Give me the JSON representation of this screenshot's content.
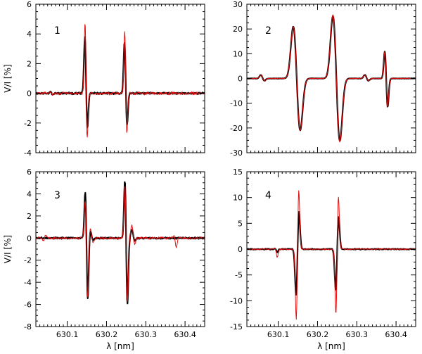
{
  "figure": {
    "ylabel": "V/I [%]",
    "xlabel": "λ [nm]"
  },
  "chart_data": [
    {
      "type": "line",
      "panel_label": "1",
      "xlim": [
        630.02,
        630.45
      ],
      "ylim": [
        -4,
        6
      ],
      "x_ticks": [
        630.1,
        630.2,
        630.3,
        630.4
      ],
      "y_ticks": [
        -4,
        -2,
        0,
        2,
        4,
        6
      ],
      "ylabel": "V/I [%]",
      "xlabel": "",
      "show_x_tick_labels": false,
      "series": [
        {
          "color": "#000000",
          "width": 2.2,
          "noise": 0.07,
          "seed": 11,
          "components": [
            [
              630.148,
              0.0035,
              3.9,
              -2.5
            ],
            [
              630.249,
              0.0035,
              3.6,
              -2.3
            ]
          ],
          "weak": [
            [
              630.06,
              0.003,
              0.15,
              -0.12
            ]
          ]
        },
        {
          "color": "#e01010",
          "width": 1.0,
          "noise": 0.12,
          "seed": 29,
          "components": [
            [
              630.148,
              0.003,
              5.0,
              -3.3
            ],
            [
              630.249,
              0.003,
              4.4,
              -2.9
            ]
          ],
          "weak": [
            [
              630.06,
              0.003,
              0.12,
              -0.12
            ]
          ]
        }
      ]
    },
    {
      "type": "line",
      "panel_label": "2",
      "xlim": [
        630.02,
        630.45
      ],
      "ylim": [
        -30,
        30
      ],
      "x_ticks": [
        630.1,
        630.2,
        630.3,
        630.4
      ],
      "y_ticks": [
        -30,
        -20,
        -10,
        0,
        10,
        20,
        30
      ],
      "ylabel": "",
      "xlabel": "",
      "show_x_tick_labels": false,
      "series": [
        {
          "color": "#000000",
          "width": 2.2,
          "noise": 0.1,
          "seed": 5,
          "components": [
            [
              630.147,
              0.0095,
              22.0,
              -22.0
            ],
            [
              630.248,
              0.0095,
              26.5,
              -26.5
            ],
            [
              630.375,
              0.004,
              11.5,
              -12.0
            ]
          ],
          "weak": [
            [
              630.06,
              0.005,
              1.5,
              -1.0
            ],
            [
              630.325,
              0.005,
              1.5,
              -1.0
            ]
          ]
        },
        {
          "color": "#e01010",
          "width": 1.0,
          "noise": 0.15,
          "seed": 17,
          "components": [
            [
              630.147,
              0.0095,
              22.0,
              -22.0
            ],
            [
              630.248,
              0.0095,
              27.0,
              -27.0
            ],
            [
              630.375,
              0.004,
              11.5,
              -12.0
            ]
          ],
          "weak": [
            [
              630.06,
              0.005,
              1.5,
              -1.0
            ],
            [
              630.325,
              0.005,
              1.5,
              -1.0
            ]
          ]
        }
      ]
    },
    {
      "type": "line",
      "panel_label": "3",
      "xlim": [
        630.02,
        630.45
      ],
      "ylim": [
        -8,
        6
      ],
      "x_ticks": [
        630.1,
        630.2,
        630.3,
        630.4
      ],
      "y_ticks": [
        -8,
        -6,
        -4,
        -2,
        0,
        2,
        4,
        6
      ],
      "ylabel": "V/I [%]",
      "xlabel": "λ [nm]",
      "show_x_tick_labels": true,
      "x_tick_labels": [
        "630.1",
        "630.2",
        "630.3",
        "630.4"
      ],
      "series": [
        {
          "color": "#000000",
          "width": 2.2,
          "noise": 0.08,
          "seed": 3,
          "components": [
            [
              630.149,
              0.0035,
              4.4,
              -5.8
            ],
            [
              630.25,
              0.0035,
              5.4,
              -6.2
            ]
          ],
          "weak": [
            [
              630.268,
              0.004,
              0.8,
              -0.3
            ],
            [
              630.162,
              0.004,
              0.7,
              -0.2
            ]
          ]
        },
        {
          "color": "#e01010",
          "width": 1.0,
          "noise": 0.13,
          "seed": 41,
          "components": [
            [
              630.149,
              0.0035,
              3.7,
              -5.7
            ],
            [
              630.25,
              0.0035,
              5.1,
              -6.0
            ]
          ],
          "weak": [
            [
              630.268,
              0.004,
              1.2,
              -0.6
            ],
            [
              630.162,
              0.004,
              1.0,
              -0.4
            ],
            [
              630.375,
              0.003,
              0.2,
              -0.9
            ],
            [
              630.042,
              0.003,
              -0.3,
              0.3
            ]
          ]
        }
      ]
    },
    {
      "type": "line",
      "panel_label": "4",
      "xlim": [
        630.02,
        630.45
      ],
      "ylim": [
        -15,
        15
      ],
      "x_ticks": [
        630.1,
        630.2,
        630.3,
        630.4
      ],
      "y_ticks": [
        -15,
        -10,
        -5,
        0,
        5,
        10,
        15
      ],
      "ylabel": "",
      "xlabel": "λ [nm]",
      "show_x_tick_labels": true,
      "x_tick_labels": [
        "630.1",
        "630.2",
        "630.3",
        "630.4"
      ],
      "series": [
        {
          "color": "#000000",
          "width": 2.2,
          "noise": 0.1,
          "seed": 8,
          "components": [
            [
              630.149,
              0.004,
              -9.3,
              7.7
            ],
            [
              630.25,
              0.004,
              -8.2,
              6.6
            ]
          ],
          "weak": [
            [
              630.095,
              0.003,
              0.1,
              -0.6
            ]
          ]
        },
        {
          "color": "#e01010",
          "width": 1.0,
          "noise": 0.15,
          "seed": 23,
          "components": [
            [
              630.149,
              0.0035,
              -14.2,
              12.0
            ],
            [
              630.25,
              0.0035,
              -13.0,
              10.7
            ]
          ],
          "weak": [
            [
              630.095,
              0.003,
              0.1,
              -1.6
            ]
          ]
        }
      ]
    }
  ]
}
